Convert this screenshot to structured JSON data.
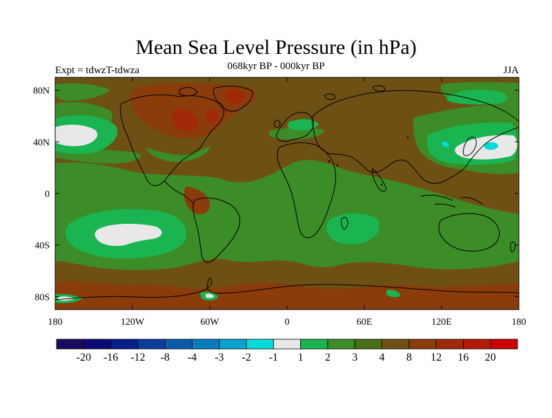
{
  "title": "Mean Sea Level Pressure (in hPa)",
  "subtitle": "068kyr BP - 000kyr BP",
  "experiment": "Expt = tdwzT-tdwza",
  "season": "JJA",
  "lat_ticks": [
    {
      "value": 80,
      "label": "80N"
    },
    {
      "value": 40,
      "label": "40N"
    },
    {
      "value": 0,
      "label": "0"
    },
    {
      "value": -40,
      "label": "40S"
    },
    {
      "value": -80,
      "label": "80S"
    }
  ],
  "lon_ticks": [
    {
      "value": -180,
      "label": "180"
    },
    {
      "value": -120,
      "label": "120W"
    },
    {
      "value": -60,
      "label": "60W"
    },
    {
      "value": 0,
      "label": "0"
    },
    {
      "value": 60,
      "label": "60E"
    },
    {
      "value": 120,
      "label": "120E"
    },
    {
      "value": 180,
      "label": "180"
    }
  ],
  "colorbar": {
    "colors": [
      "#1a0a60",
      "#0b0b78",
      "#08208c",
      "#0a3c9c",
      "#0a5aac",
      "#0a7cc0",
      "#0aa2d0",
      "#00dcdc",
      "#e8e8e8",
      "#1ab450",
      "#3c8c28",
      "#4a6e14",
      "#6e5014",
      "#8a3c0a",
      "#a02a08",
      "#b41a08",
      "#cc0000"
    ],
    "labels": [
      "-20",
      "-16",
      "-12",
      "-8",
      "-4",
      "-3",
      "-2",
      "-1",
      "1",
      "2",
      "3",
      "4",
      "8",
      "12",
      "16",
      "20"
    ]
  },
  "colors": {
    "background_field": "#6e5014",
    "level_3": "#3c8c28",
    "level_2": "#1ab450",
    "level_1": "#e8e8e8",
    "level_neg1": "#00dcdc",
    "level_12": "#8a3c0a",
    "level_16": "#a02a08",
    "coast": "#000000"
  }
}
